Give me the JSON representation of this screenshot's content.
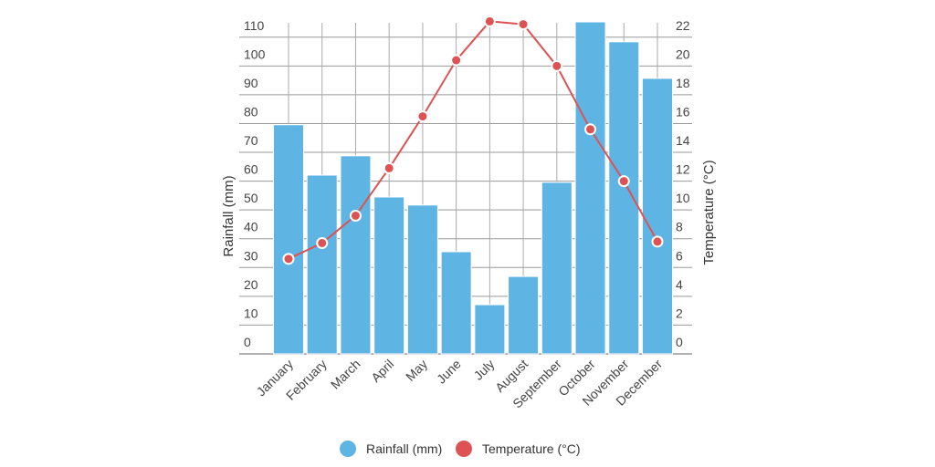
{
  "chart_data": {
    "type": "bar+line",
    "categories": [
      "January",
      "February",
      "March",
      "April",
      "May",
      "June",
      "July",
      "August",
      "September",
      "October",
      "November",
      "December"
    ],
    "series": [
      {
        "name": "Rainfall (mm)",
        "type": "bar",
        "axis": "left",
        "color": "#5eb5e4",
        "values": [
          79.6,
          62.1,
          68.8,
          54.5,
          51.7,
          35.5,
          17.1,
          26.9,
          59.6,
          115.4,
          108.4,
          95.7
        ]
      },
      {
        "name": "Temperature (°C)",
        "type": "line",
        "axis": "right",
        "color": "#dd5252",
        "values": [
          6.6,
          7.7,
          9.6,
          12.9,
          16.5,
          20.4,
          23.1,
          22.9,
          20.0,
          15.6,
          12.0,
          7.8
        ]
      }
    ],
    "ylabel": "Rainfall (mm)",
    "y2label": "Temperature (°C)",
    "ylim": [
      0,
      115
    ],
    "y2lim": [
      0,
      23
    ],
    "yticks": [
      0,
      10,
      20,
      30,
      40,
      50,
      60,
      70,
      80,
      90,
      100,
      110
    ],
    "y2ticks": [
      0,
      2,
      4,
      6,
      8,
      10,
      12,
      14,
      16,
      18,
      20,
      22
    ],
    "grid": true,
    "legend_position": "bottom"
  }
}
